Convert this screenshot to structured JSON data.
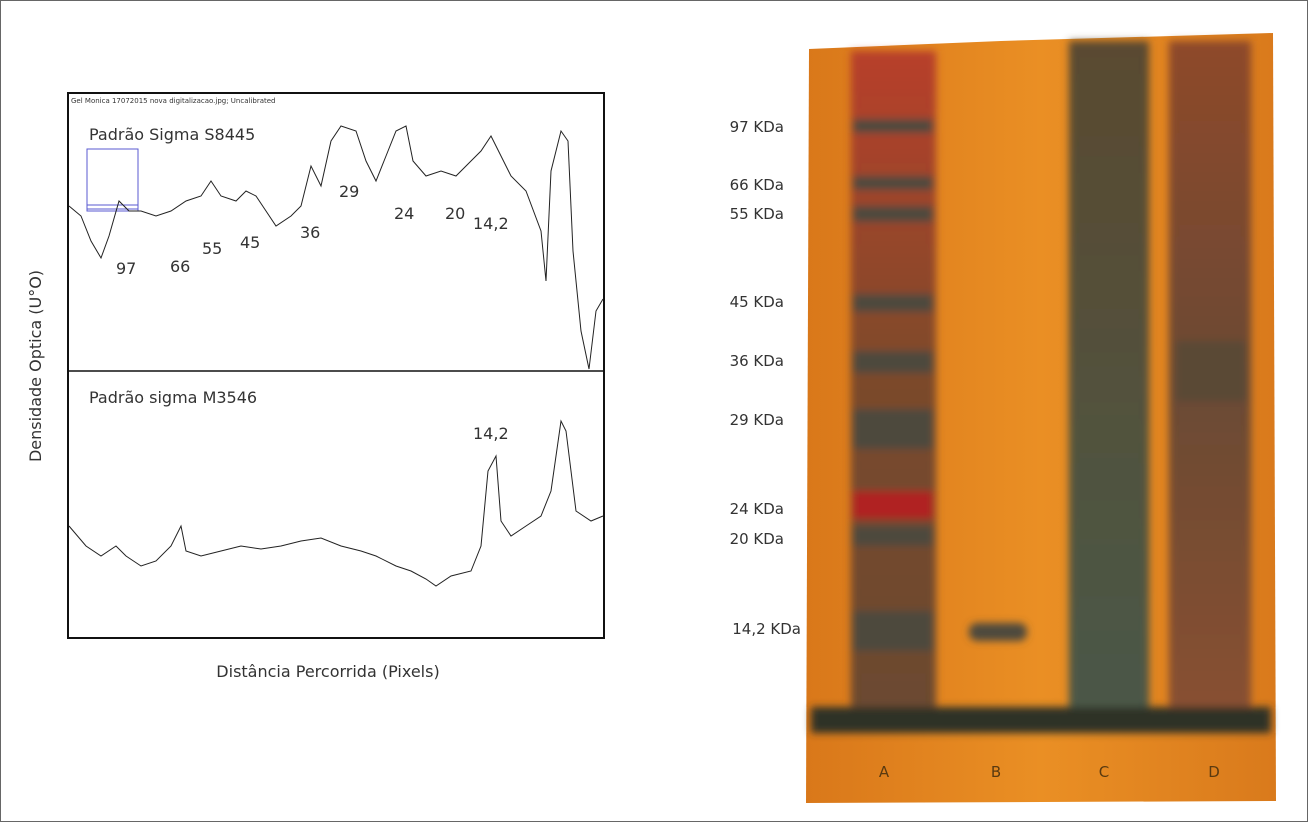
{
  "profile": {
    "image_header": "Gel Monica 17072015 nova digitalizacao.jpg; Uncalibrated",
    "y_axis_label": "Densidade Optica (U°O)",
    "x_axis_label": "Distância Percorrida (Pixels)",
    "top_panel": {
      "title": "Padrão Sigma S8445",
      "peak_labels": [
        "97",
        "66",
        "55",
        "45",
        "36",
        "29",
        "24",
        "20",
        "14,2"
      ]
    },
    "bottom_panel": {
      "title": "Padrão sigma M3546",
      "peak_labels": [
        "14,2"
      ]
    }
  },
  "gel": {
    "marker_labels": [
      "97 KDa",
      "66 KDa",
      "55 KDa",
      "45 KDa",
      "36 KDa",
      "29 KDa",
      "24 KDa",
      "20 KDa",
      "14,2 KDa"
    ],
    "lane_labels": [
      "A",
      "B",
      "C",
      "D"
    ]
  }
}
